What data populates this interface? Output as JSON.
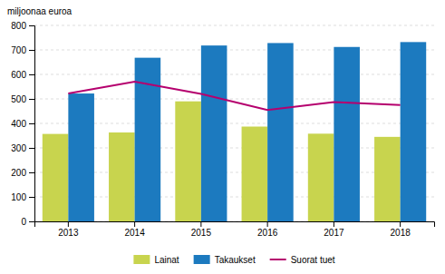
{
  "chart_data": {
    "type": "bar",
    "ylabel": "miljoonaa euroa",
    "categories": [
      "2013",
      "2014",
      "2015",
      "2016",
      "2017",
      "2018"
    ],
    "series": [
      {
        "name": "Lainat",
        "type": "bar",
        "color": "#c8d44e",
        "values": [
          357,
          363,
          490,
          387,
          358,
          345
        ]
      },
      {
        "name": "Takaukset",
        "type": "bar",
        "color": "#1c7abf",
        "values": [
          522,
          668,
          718,
          728,
          712,
          732
        ]
      },
      {
        "name": "Suorat tuet",
        "type": "line",
        "color": "#b5006e",
        "values": [
          522,
          570,
          520,
          455,
          487,
          475
        ]
      }
    ],
    "ylim": [
      0,
      800
    ],
    "yticks": [
      0,
      100,
      200,
      300,
      400,
      500,
      600,
      700,
      800
    ],
    "grid": true,
    "legend": "bottom"
  }
}
